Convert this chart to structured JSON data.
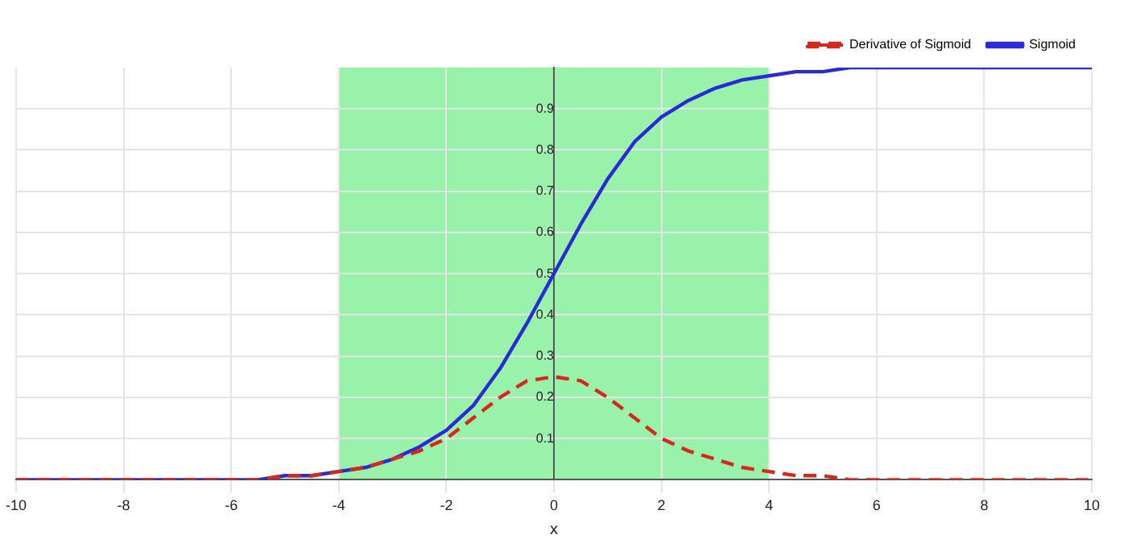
{
  "chart_data": {
    "type": "line",
    "xlabel": "x",
    "x": [
      -10,
      -9.5,
      -9,
      -8.5,
      -8,
      -7.5,
      -7,
      -6.5,
      -6,
      -5.5,
      -5,
      -4.5,
      -4,
      -3.5,
      -3,
      -2.5,
      -2,
      -1.5,
      -1,
      -0.5,
      0,
      0.5,
      1,
      1.5,
      2,
      2.5,
      3,
      3.5,
      4,
      4.5,
      5,
      5.5,
      6,
      6.5,
      7,
      7.5,
      8,
      8.5,
      9,
      9.5,
      10
    ],
    "series": [
      {
        "name": "Sigmoid",
        "color": "#2b2bd6",
        "line_style": "solid",
        "values": [
          0,
          0,
          0,
          0,
          0,
          0,
          0,
          0,
          0,
          0,
          0.01,
          0.01,
          0.02,
          0.03,
          0.05,
          0.08,
          0.12,
          0.18,
          0.27,
          0.38,
          0.5,
          0.62,
          0.73,
          0.82,
          0.88,
          0.92,
          0.95,
          0.97,
          0.98,
          0.99,
          0.99,
          1,
          1,
          1,
          1,
          1,
          1,
          1,
          1,
          1,
          1
        ]
      },
      {
        "name": "Derivative of Sigmoid",
        "color": "#d42a1e",
        "line_style": "dashed",
        "values": [
          0,
          0,
          0,
          0,
          0,
          0,
          0,
          0,
          0,
          0,
          0.01,
          0.01,
          0.02,
          0.03,
          0.05,
          0.07,
          0.1,
          0.15,
          0.2,
          0.24,
          0.25,
          0.24,
          0.2,
          0.15,
          0.1,
          0.07,
          0.05,
          0.03,
          0.02,
          0.01,
          0.01,
          0,
          0,
          0,
          0,
          0,
          0,
          0,
          0,
          0,
          0
        ]
      }
    ],
    "xlim": [
      -10,
      10
    ],
    "xticks": [
      -10,
      -8,
      -6,
      -4,
      -2,
      0,
      2,
      4,
      6,
      8,
      10
    ],
    "ylim": [
      0,
      1
    ],
    "yticks": [
      0.1,
      0.2,
      0.3,
      0.4,
      0.5,
      0.6,
      0.7,
      0.8,
      0.9
    ],
    "bands": [
      {
        "axis": "x",
        "from": -4,
        "to": 4,
        "color": "#99f2aa"
      }
    ],
    "grid": true,
    "legend": "top right"
  }
}
